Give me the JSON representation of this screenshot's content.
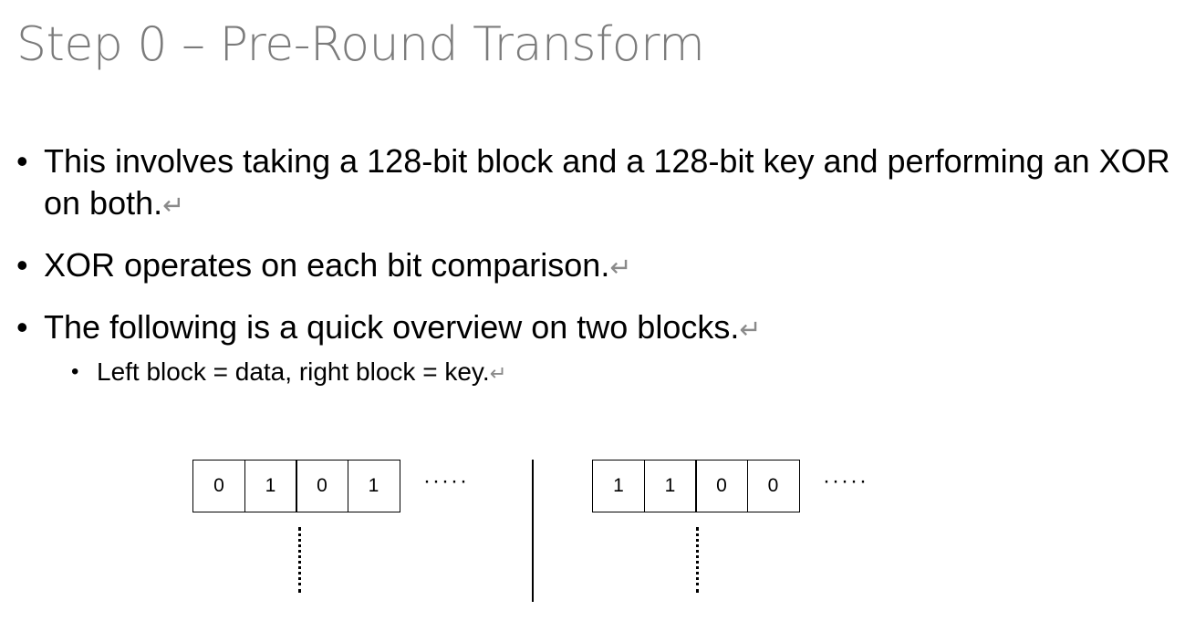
{
  "title": "Step 0 – Pre-Round Transform",
  "title_fragment": "•",
  "return_mark": "↵",
  "bullets": [
    {
      "text": "This involves taking a 128-bit block and a 128-bit key and performing an XOR on both.",
      "bullet_char": "•"
    },
    {
      "text": "XOR operates on each bit comparison.",
      "bullet_char": "•"
    },
    {
      "text": "The following is a quick overview on two blocks.",
      "bullet_char": "•"
    }
  ],
  "sub_bullet": {
    "text": "Left block = data, right block = key.",
    "bullet_char": "•"
  },
  "diagram": {
    "left_block": [
      "0",
      "1",
      "0",
      "1"
    ],
    "right_block": [
      "1",
      "1",
      "0",
      "0"
    ],
    "continuation": "·····"
  }
}
